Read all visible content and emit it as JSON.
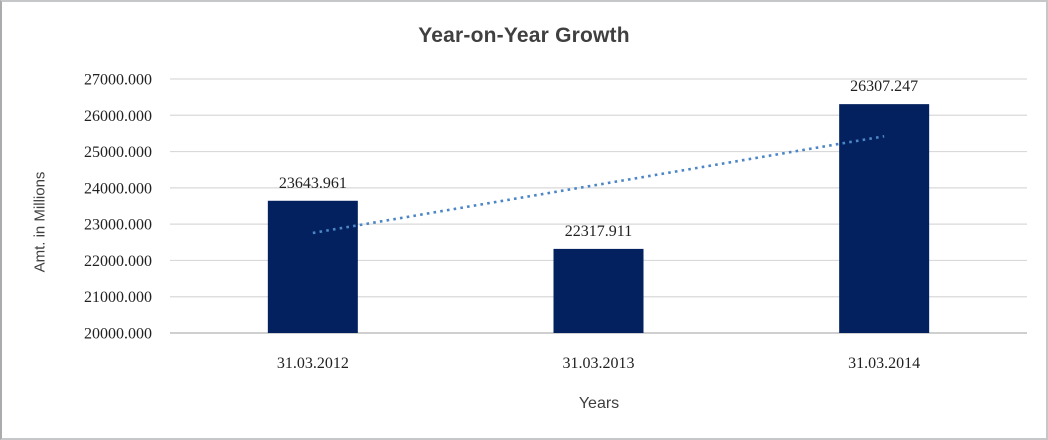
{
  "chart_data": {
    "type": "bar",
    "title": "Year-on-Year Growth",
    "xlabel": "Years",
    "ylabel": "Amt. in Millions",
    "categories": [
      "31.03.2012",
      "31.03.2013",
      "31.03.2014"
    ],
    "values": [
      23643.961,
      22317.911,
      26307.247
    ],
    "data_labels": [
      "23643.961",
      "22317.911",
      "26307.247"
    ],
    "ytick_labels": [
      "20000.000",
      "21000.000",
      "22000.000",
      "23000.000",
      "24000.000",
      "25000.000",
      "26000.000",
      "27000.000"
    ],
    "ylim": [
      20000,
      27000
    ],
    "ytick_step": 1000,
    "ytick_decimals": 3,
    "grid": "horizontal",
    "legend": "none",
    "trendline": {
      "type": "linear",
      "style": "dotted",
      "start_value": 22758.06,
      "end_value": 25421.35,
      "color": "#4C86C6"
    },
    "colors": {
      "bar": "#03215F",
      "gridline": "#D9D9D9",
      "axis_line": "#BFBFBF",
      "title_text": "#404040",
      "axis_title_text": "#3F3F3F",
      "tick_text": "#212121",
      "background": "#FFFFFF",
      "frame_border": "#C6C7C8"
    }
  }
}
